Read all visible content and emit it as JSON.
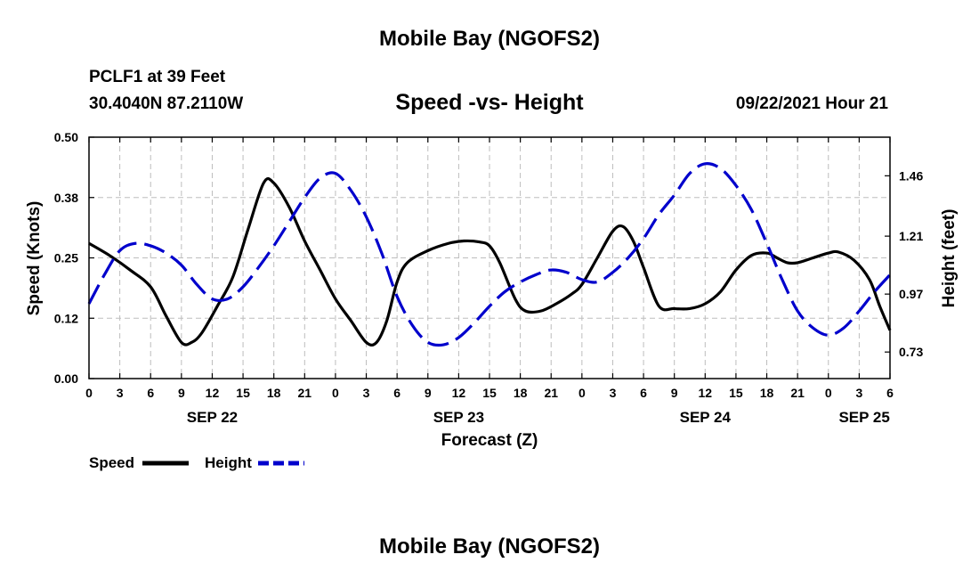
{
  "header": {
    "title": "Mobile Bay (NGOFS2)",
    "station": "PCLF1 at 39 Feet",
    "coords": "30.4040N  87.2110W",
    "subtitle": "Speed -vs- Height",
    "timestamp": "09/22/2021 Hour 21"
  },
  "footer": {
    "title": "Mobile Bay (NGOFS2)"
  },
  "legend": {
    "speed_label": "Speed",
    "height_label": "Height"
  },
  "chart_data": {
    "type": "line",
    "title": "Speed -vs- Height",
    "xlabel": "Forecast (Z)",
    "ylabel": "Speed (Knots)",
    "y2label": "Height (feet)",
    "xlim": [
      0,
      78
    ],
    "ylim": [
      0,
      0.5
    ],
    "y2lim": [
      0.62,
      1.62
    ],
    "x_ticks": [
      0,
      3,
      6,
      9,
      12,
      15,
      18,
      21,
      24,
      27,
      30,
      33,
      36,
      39,
      42,
      45,
      48,
      51,
      54,
      57,
      60,
      63,
      66,
      69,
      72,
      75,
      78
    ],
    "x_tick_labels": [
      "0",
      "3",
      "6",
      "9",
      "12",
      "15",
      "18",
      "21",
      "0",
      "3",
      "6",
      "9",
      "12",
      "15",
      "18",
      "21",
      "0",
      "3",
      "6",
      "9",
      "12",
      "15",
      "18",
      "21",
      "0",
      "3",
      "6"
    ],
    "y_ticks": [
      0.0,
      0.125,
      0.25,
      0.375,
      0.5
    ],
    "y_tick_labels": [
      "0.00",
      "0.12",
      "0.25",
      "0.38",
      "0.50"
    ],
    "y2_ticks": [
      0.73,
      0.97,
      1.21,
      1.46
    ],
    "y2_tick_labels": [
      "0.73",
      "0.97",
      "1.21",
      "1.46"
    ],
    "date_labels": [
      {
        "x": 12,
        "text": "SEP 22"
      },
      {
        "x": 36,
        "text": "SEP 23"
      },
      {
        "x": 60,
        "text": "SEP 24"
      },
      {
        "x": 75.5,
        "text": "SEP 25"
      }
    ],
    "grid": true,
    "legend_position": "bottom-left",
    "series": [
      {
        "name": "Speed",
        "axis": "left",
        "color": "#000000",
        "style": "solid",
        "x": [
          0,
          2,
          4,
          6,
          7.5,
          9,
          10,
          11,
          12.5,
          14,
          15.5,
          17,
          18,
          19.5,
          21,
          22.5,
          24,
          25.5,
          27,
          28,
          29,
          30,
          31,
          33,
          35,
          36.5,
          38,
          39,
          40,
          41.5,
          42.5,
          44,
          45.5,
          47,
          48,
          49.5,
          51,
          52,
          53,
          54,
          55.5,
          57,
          58.5,
          60,
          61.5,
          63,
          64.5,
          66,
          67,
          68,
          69,
          70.5,
          72,
          73,
          74.5,
          76,
          77,
          78
        ],
        "y": [
          0.28,
          0.255,
          0.225,
          0.19,
          0.13,
          0.075,
          0.075,
          0.095,
          0.15,
          0.21,
          0.31,
          0.405,
          0.405,
          0.355,
          0.285,
          0.225,
          0.165,
          0.12,
          0.075,
          0.075,
          0.12,
          0.2,
          0.24,
          0.265,
          0.28,
          0.285,
          0.283,
          0.275,
          0.24,
          0.165,
          0.14,
          0.14,
          0.155,
          0.175,
          0.195,
          0.25,
          0.305,
          0.315,
          0.285,
          0.23,
          0.15,
          0.145,
          0.145,
          0.155,
          0.18,
          0.225,
          0.255,
          0.26,
          0.25,
          0.24,
          0.24,
          0.25,
          0.26,
          0.262,
          0.245,
          0.205,
          0.15,
          0.1
        ]
      },
      {
        "name": "Height",
        "axis": "right",
        "color": "#0000cc",
        "style": "dashed",
        "x": [
          0,
          1.5,
          3,
          4.5,
          6,
          7.5,
          9,
          10.5,
          12,
          13.5,
          15,
          16.5,
          18,
          19.5,
          21,
          22.5,
          24,
          25.5,
          27,
          28.5,
          30,
          31.5,
          33,
          34.5,
          36,
          37.5,
          39,
          40.5,
          42,
          43.5,
          45,
          46.5,
          48,
          49.5,
          51,
          52.5,
          54,
          55.5,
          57,
          58.5,
          60,
          61.5,
          63,
          64.5,
          66,
          67.5,
          69,
          70.5,
          72,
          73.5,
          75,
          76.5,
          78
        ],
        "y": [
          0.93,
          1.05,
          1.15,
          1.18,
          1.17,
          1.14,
          1.09,
          1.01,
          0.95,
          0.95,
          1.0,
          1.08,
          1.17,
          1.27,
          1.37,
          1.45,
          1.47,
          1.4,
          1.29,
          1.14,
          0.96,
          0.84,
          0.77,
          0.76,
          0.79,
          0.85,
          0.92,
          0.98,
          1.02,
          1.05,
          1.07,
          1.06,
          1.03,
          1.02,
          1.06,
          1.12,
          1.2,
          1.3,
          1.38,
          1.47,
          1.51,
          1.49,
          1.42,
          1.32,
          1.18,
          1.03,
          0.9,
          0.83,
          0.8,
          0.83,
          0.9,
          0.98,
          1.05
        ]
      }
    ]
  }
}
